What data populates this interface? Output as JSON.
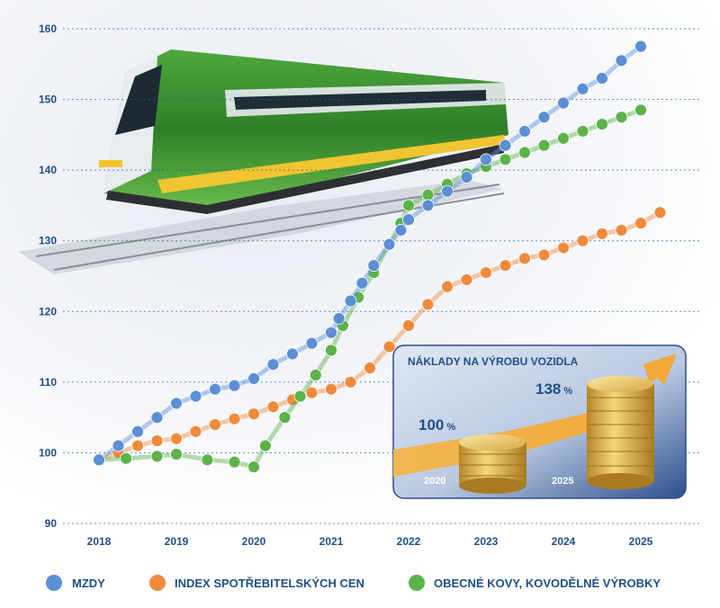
{
  "chart_data": {
    "type": "line",
    "title": "",
    "xlabel": "",
    "ylabel": "",
    "ylim": [
      90,
      160
    ],
    "yticks": [
      90,
      100,
      110,
      120,
      130,
      140,
      150,
      160
    ],
    "xticks": [
      2018,
      2019,
      2020,
      2021,
      2022,
      2023,
      2024,
      2025
    ],
    "xlim": [
      2018,
      2025
    ],
    "grid": "horizontal dashed",
    "legend": "bottom",
    "series": [
      {
        "name": "MZDY",
        "color": "#5b8fd6",
        "points": [
          [
            2018.0,
            99.0
          ],
          [
            2018.25,
            101.0
          ],
          [
            2018.5,
            103.0
          ],
          [
            2018.75,
            105.0
          ],
          [
            2019.0,
            107.0
          ],
          [
            2019.25,
            108.0
          ],
          [
            2019.5,
            109.0
          ],
          [
            2019.75,
            109.5
          ],
          [
            2020.0,
            110.5
          ],
          [
            2020.25,
            112.5
          ],
          [
            2020.5,
            114.0
          ],
          [
            2020.75,
            115.5
          ],
          [
            2021.0,
            117.0
          ],
          [
            2021.1,
            119.0
          ],
          [
            2021.25,
            121.5
          ],
          [
            2021.4,
            124.0
          ],
          [
            2021.55,
            126.5
          ],
          [
            2021.75,
            129.5
          ],
          [
            2021.9,
            131.5
          ],
          [
            2022.0,
            133.0
          ],
          [
            2022.25,
            135.0
          ],
          [
            2022.5,
            137.0
          ],
          [
            2022.75,
            139.0
          ],
          [
            2023.0,
            141.5
          ],
          [
            2023.25,
            143.5
          ],
          [
            2023.5,
            145.5
          ],
          [
            2023.75,
            147.5
          ],
          [
            2024.0,
            149.5
          ],
          [
            2024.25,
            151.5
          ],
          [
            2024.5,
            153.0
          ],
          [
            2024.75,
            155.5
          ],
          [
            2025.0,
            157.5
          ]
        ]
      },
      {
        "name": "INDEX SPOTŘEBITELSKÝCH CEN",
        "color": "#f08a3c",
        "points": [
          [
            2018.0,
            99.0
          ],
          [
            2018.25,
            100.0
          ],
          [
            2018.5,
            101.0
          ],
          [
            2018.75,
            101.7
          ],
          [
            2019.0,
            102.0
          ],
          [
            2019.25,
            103.0
          ],
          [
            2019.5,
            104.0
          ],
          [
            2019.75,
            104.8
          ],
          [
            2020.0,
            105.5
          ],
          [
            2020.25,
            106.5
          ],
          [
            2020.5,
            107.5
          ],
          [
            2020.75,
            108.5
          ],
          [
            2021.0,
            109.0
          ],
          [
            2021.25,
            110.0
          ],
          [
            2021.5,
            112.0
          ],
          [
            2021.75,
            115.0
          ],
          [
            2022.0,
            118.0
          ],
          [
            2022.25,
            121.0
          ],
          [
            2022.5,
            123.5
          ],
          [
            2022.75,
            124.5
          ],
          [
            2023.0,
            125.5
          ],
          [
            2023.25,
            126.5
          ],
          [
            2023.5,
            127.5
          ],
          [
            2023.75,
            128.0
          ],
          [
            2024.0,
            129.0
          ],
          [
            2024.25,
            130.0
          ],
          [
            2024.5,
            131.0
          ],
          [
            2024.75,
            131.5
          ],
          [
            2025.0,
            132.5
          ],
          [
            2025.25,
            134.0
          ]
        ]
      },
      {
        "name": "OBECNÉ KOVY, KOVODĚLNÉ VÝROBKY",
        "color": "#5cb34a",
        "points": [
          [
            2018.0,
            99.0
          ],
          [
            2018.35,
            99.2
          ],
          [
            2018.75,
            99.5
          ],
          [
            2019.0,
            99.8
          ],
          [
            2019.4,
            99.0
          ],
          [
            2019.75,
            98.7
          ],
          [
            2020.0,
            98.0
          ],
          [
            2020.15,
            101.0
          ],
          [
            2020.4,
            105.0
          ],
          [
            2020.6,
            108.0
          ],
          [
            2020.8,
            111.0
          ],
          [
            2021.0,
            114.5
          ],
          [
            2021.15,
            118.0
          ],
          [
            2021.35,
            122.0
          ],
          [
            2021.55,
            125.5
          ],
          [
            2021.75,
            129.5
          ],
          [
            2021.9,
            132.5
          ],
          [
            2022.0,
            135.0
          ],
          [
            2022.25,
            136.5
          ],
          [
            2022.5,
            138.0
          ],
          [
            2022.75,
            139.5
          ],
          [
            2023.0,
            140.5
          ],
          [
            2023.25,
            141.5
          ],
          [
            2023.5,
            142.5
          ],
          [
            2023.75,
            143.5
          ],
          [
            2024.0,
            144.5
          ],
          [
            2024.25,
            145.5
          ],
          [
            2024.5,
            146.5
          ],
          [
            2024.75,
            147.5
          ],
          [
            2025.0,
            148.5
          ]
        ]
      }
    ]
  },
  "inset": {
    "title": "NÁKLADY NA VÝROBU VOZIDLA",
    "left_value": "100",
    "left_unit": "%",
    "left_year": "2020",
    "right_value": "138",
    "right_unit": "%",
    "right_year": "2025"
  },
  "legend": {
    "items": [
      {
        "label": "MZDY",
        "color": "#5b8fd6"
      },
      {
        "label": "INDEX SPOTŘEBITELSKÝCH CEN",
        "color": "#f08a3c"
      },
      {
        "label": "OBECNÉ KOVY, KOVODĚLNÉ VÝROBKY",
        "color": "#5cb34a"
      }
    ]
  },
  "photo": {
    "icon": "train-photo"
  }
}
